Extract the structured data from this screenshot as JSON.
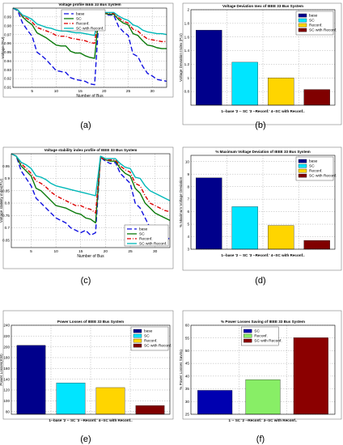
{
  "chart_data": [
    {
      "id": "a",
      "panel_label": "(a)",
      "type": "line",
      "title": "Voltage profile IEEE 33 Bus System",
      "xlabel": "Number of Bus",
      "ylabel": "Voltage (P.U)",
      "xlim": [
        1,
        33
      ],
      "ylim": [
        0.91,
        1.0
      ],
      "xticks": [
        5,
        10,
        15,
        20,
        25,
        30
      ],
      "yticks": [
        0.91,
        0.92,
        0.93,
        0.94,
        0.95,
        0.96,
        0.97,
        0.98,
        0.99
      ],
      "grid": true,
      "legend": "top-center",
      "series": [
        {
          "name": "base",
          "color": "#1010e0",
          "dash": "6,3",
          "values": [
            1.0,
            0.997,
            0.983,
            0.975,
            0.968,
            0.95,
            0.946,
            0.941,
            0.935,
            0.929,
            0.928,
            0.927,
            0.921,
            0.919,
            0.918,
            0.917,
            0.914,
            0.913,
            0.997,
            0.993,
            0.992,
            0.992,
            0.979,
            0.973,
            0.969,
            0.948,
            0.945,
            0.934,
            0.926,
            0.923,
            0.919,
            0.918,
            0.917
          ]
        },
        {
          "name": "SC",
          "color": "#0a7a0a",
          "dash": "",
          "values": [
            1.0,
            0.998,
            0.99,
            0.985,
            0.981,
            0.972,
            0.969,
            0.966,
            0.962,
            0.958,
            0.957,
            0.957,
            0.951,
            0.949,
            0.949,
            0.946,
            0.944,
            0.943,
            0.997,
            0.994,
            0.993,
            0.993,
            0.987,
            0.983,
            0.981,
            0.971,
            0.969,
            0.963,
            0.958,
            0.957,
            0.955,
            0.954,
            0.954
          ]
        },
        {
          "name": "Reconf.",
          "color": "#dd0000",
          "dash": "5,2,1,2",
          "values": [
            1.0,
            0.998,
            0.991,
            0.988,
            0.984,
            0.978,
            0.976,
            0.974,
            0.972,
            0.969,
            0.968,
            0.968,
            0.966,
            0.965,
            0.964,
            0.963,
            0.961,
            0.96,
            0.997,
            0.995,
            0.994,
            0.994,
            0.989,
            0.985,
            0.983,
            0.976,
            0.974,
            0.969,
            0.965,
            0.964,
            0.963,
            0.962,
            0.962
          ]
        },
        {
          "name": "SC with Reconf.",
          "color": "#00b8b8",
          "dash": "",
          "values": [
            1.0,
            0.998,
            0.992,
            0.99,
            0.987,
            0.982,
            0.98,
            0.978,
            0.977,
            0.975,
            0.974,
            0.974,
            0.973,
            0.972,
            0.972,
            0.971,
            0.97,
            0.969,
            0.997,
            0.995,
            0.995,
            0.995,
            0.991,
            0.988,
            0.986,
            0.981,
            0.979,
            0.975,
            0.973,
            0.972,
            0.971,
            0.971,
            0.97
          ]
        }
      ]
    },
    {
      "id": "b",
      "panel_label": "(b)",
      "type": "bar",
      "title": "Voltage Deviation Inex of IEEE 33 Bus System",
      "xlabel": "1--base '2 -- SC '3 --Reconf.' 4--SC with Reconf..",
      "ylabel": "Voltage Deviation Index (P.U)",
      "ylim": [
        0.6,
        2.0
      ],
      "yticks": [
        0.8,
        1.0,
        1.2,
        1.4,
        1.6,
        1.8,
        2.0
      ],
      "ytick_labels": [
        "0.8",
        "1",
        "1.2",
        "1.4",
        "1.6",
        "1.8",
        "2"
      ],
      "grid": true,
      "legend": "top-right",
      "categories": [
        "base",
        "SC",
        "Reconf.",
        "SC with Reconf."
      ],
      "values": [
        1.7,
        1.23,
        1.0,
        0.83
      ],
      "colors": [
        "#00008b",
        "#00e5ff",
        "#ffd500",
        "#800000"
      ]
    },
    {
      "id": "c",
      "panel_label": "(c)",
      "type": "line",
      "title": "Voltage stability index profile of IEEE 33 Bus System",
      "xlabel": "Number of Bus",
      "ylabel": "Voltage stability index(P.U)",
      "xlim": [
        1,
        33
      ],
      "ylim": [
        0.62,
        1.0
      ],
      "xticks": [
        5,
        10,
        15,
        20,
        25,
        30
      ],
      "yticks": [
        0.65,
        0.7,
        0.75,
        0.8,
        0.85,
        0.9,
        0.95
      ],
      "grid": true,
      "legend": "bottom-right",
      "series": [
        {
          "name": "base",
          "color": "#1010e0",
          "dash": "6,3",
          "values": [
            1.0,
            0.99,
            0.93,
            0.9,
            0.87,
            0.82,
            0.8,
            0.78,
            0.76,
            0.74,
            0.73,
            0.72,
            0.7,
            0.69,
            0.68,
            0.69,
            0.67,
            0.68,
            0.985,
            0.97,
            0.96,
            0.965,
            0.92,
            0.9,
            0.88,
            0.8,
            0.78,
            0.74,
            0.7,
            0.68,
            0.67,
            0.66,
            0.655
          ]
        },
        {
          "name": "SC",
          "color": "#0a7a0a",
          "dash": "",
          "values": [
            1.0,
            0.99,
            0.95,
            0.93,
            0.91,
            0.86,
            0.85,
            0.83,
            0.81,
            0.79,
            0.785,
            0.78,
            0.77,
            0.76,
            0.755,
            0.74,
            0.735,
            0.72,
            0.985,
            0.975,
            0.97,
            0.97,
            0.94,
            0.92,
            0.91,
            0.86,
            0.84,
            0.8,
            0.78,
            0.76,
            0.75,
            0.74,
            0.73
          ]
        },
        {
          "name": "Reconf.",
          "color": "#dd0000",
          "dash": "5,2,1,2",
          "values": [
            1.0,
            0.99,
            0.96,
            0.94,
            0.92,
            0.89,
            0.88,
            0.865,
            0.845,
            0.83,
            0.82,
            0.81,
            0.8,
            0.79,
            0.79,
            0.78,
            0.775,
            0.76,
            0.985,
            0.975,
            0.975,
            0.975,
            0.95,
            0.935,
            0.925,
            0.88,
            0.87,
            0.83,
            0.8,
            0.79,
            0.78,
            0.77,
            0.765
          ]
        },
        {
          "name": "SC with Reconf.",
          "color": "#00b8b8",
          "dash": "",
          "values": [
            1.0,
            0.99,
            0.965,
            0.955,
            0.94,
            0.91,
            0.905,
            0.895,
            0.88,
            0.87,
            0.865,
            0.86,
            0.855,
            0.85,
            0.845,
            0.84,
            0.835,
            0.83,
            0.99,
            0.98,
            0.98,
            0.98,
            0.96,
            0.945,
            0.94,
            0.905,
            0.9,
            0.87,
            0.85,
            0.84,
            0.83,
            0.82,
            0.81
          ]
        }
      ]
    },
    {
      "id": "d",
      "panel_label": "(d)",
      "type": "bar",
      "title": "% Maximum Voltage Deviation of IEEE 33 Bus System",
      "xlabel": "1--base '2 -- SC '3 --Reconf.' 4--SC with Reconf..",
      "ylabel": "% Maximum Voltage Deviation",
      "ylim": [
        3,
        10.5
      ],
      "yticks": [
        3,
        4,
        5,
        6,
        7,
        8,
        9,
        10
      ],
      "ytick_labels": [
        "3",
        "4",
        "5",
        "6",
        "7",
        "8",
        "9",
        "10"
      ],
      "grid": true,
      "legend": "top-right",
      "categories": [
        "base",
        "SC",
        "Reconf.",
        "SC with Reconf."
      ],
      "values": [
        8.7,
        6.4,
        4.9,
        3.7
      ],
      "colors": [
        "#00008b",
        "#00e5ff",
        "#ffd500",
        "#800000"
      ]
    },
    {
      "id": "e",
      "panel_label": "(e)",
      "type": "bar",
      "title": "Power Losses of IEEE 33 Bus System",
      "xlabel": "1--base '2 -- SC '3 --Reconf.' 4--SC with Reconf..",
      "ylabel": "Power Losses(KW)",
      "ylim": [
        75,
        240
      ],
      "yticks": [
        80,
        100,
        120,
        140,
        160,
        180,
        200,
        220,
        240
      ],
      "ytick_labels": [
        "80",
        "100",
        "120",
        "140",
        "160",
        "180",
        "200",
        "220",
        "240"
      ],
      "grid": true,
      "legend": "top-right",
      "categories": [
        "base",
        "SC",
        "Reconf.",
        "SC with Reconf."
      ],
      "values": [
        202.7,
        133.0,
        124.5,
        91.0
      ],
      "colors": [
        "#00008b",
        "#00e5ff",
        "#ffd500",
        "#800000"
      ]
    },
    {
      "id": "f",
      "panel_label": "(f)",
      "type": "bar",
      "title": "% Power Losses Saving of IEEE 33 Bus System",
      "xlabel": "1 -- SC '2 --Reconf.' 3--SC with Reconf..",
      "ylabel": "% Power Losses Saving",
      "ylim": [
        25,
        60
      ],
      "yticks": [
        25,
        30,
        35,
        40,
        45,
        50,
        55,
        60
      ],
      "ytick_labels": [
        "25",
        "30",
        "35",
        "40",
        "45",
        "50",
        "55",
        "60"
      ],
      "grid": true,
      "legend": "top-left",
      "categories": [
        "SC",
        "Reconf.",
        "SC with Reconf."
      ],
      "values": [
        34.4,
        38.6,
        55.1
      ],
      "colors": [
        "#0000b0",
        "#88ee66",
        "#8b0000"
      ]
    }
  ]
}
